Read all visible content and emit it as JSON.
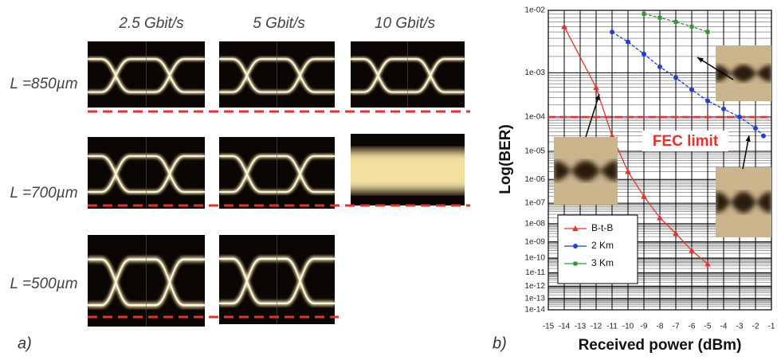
{
  "figure": {
    "panel_label": "a)",
    "columns": [
      "2.5 Gbit/s",
      "5 Gbit/s",
      "10 Gbit/s"
    ],
    "rows": [
      "L =850µm",
      "L =700µm",
      "L =500µm"
    ]
  },
  "chart_data": {
    "type": "line",
    "panel_label": "b)",
    "xlabel": "Received power (dBm)",
    "ylabel": "Log(BER)",
    "yscale": "loglog",
    "grid": true,
    "legend": "lower left",
    "xlim": [
      -15,
      -1
    ],
    "xticks": [
      -15,
      -14,
      -13,
      -12,
      -11,
      -10,
      -9,
      -8,
      -7,
      -6,
      -5,
      -4,
      -3,
      -2,
      -1
    ],
    "ylim": [
      1e-14,
      0.01
    ],
    "yticks": [
      {
        "value": 0.01,
        "label": "1e-02"
      },
      {
        "value": 0.001,
        "label": "1e-03"
      },
      {
        "value": 0.0001,
        "label": "1e-04"
      },
      {
        "value": 1e-05,
        "label": "1e-05"
      },
      {
        "value": 1e-06,
        "label": "1e-06"
      },
      {
        "value": 1e-07,
        "label": "1e-07"
      },
      {
        "value": 1e-08,
        "label": "1e-08"
      },
      {
        "value": 1e-09,
        "label": "1e-09"
      },
      {
        "value": 1e-10,
        "label": "1e-10"
      },
      {
        "value": 1e-11,
        "label": "1e-11"
      },
      {
        "value": 1e-12,
        "label": "1e-12"
      },
      {
        "value": 1e-13,
        "label": "1e-13"
      },
      {
        "value": 1e-14,
        "label": "1e-14"
      }
    ],
    "threshold": {
      "label": "FEC limit",
      "value": 0.0001,
      "color": "#e8312a"
    },
    "series": [
      {
        "name": "B-t-B",
        "color": "#e8312a",
        "marker": "triangle",
        "x": [
          -14,
          -12,
          -11,
          -10,
          -9,
          -8,
          -7,
          -6,
          -5
        ],
        "values": [
          0.006,
          0.0005,
          3e-05,
          2e-06,
          2e-07,
          2e-08,
          3e-09,
          3e-10,
          4e-11
        ]
      },
      {
        "name": "2 Km",
        "color": "#1f3fd6",
        "marker": "circle",
        "x": [
          -11,
          -10,
          -9,
          -8,
          -7,
          -6,
          -5,
          -4,
          -3,
          -2,
          -1.5
        ],
        "values": [
          0.005,
          0.0035,
          0.0022,
          0.0013,
          0.0008,
          0.00045,
          0.00025,
          0.00016,
          0.0001,
          5e-05,
          3e-05
        ]
      },
      {
        "name": "3 Km",
        "color": "#2e9a2e",
        "marker": "square",
        "x": [
          -9,
          -8,
          -7,
          -6,
          -5
        ],
        "values": [
          0.009,
          0.008,
          0.007,
          0.006,
          0.005
        ]
      }
    ]
  }
}
